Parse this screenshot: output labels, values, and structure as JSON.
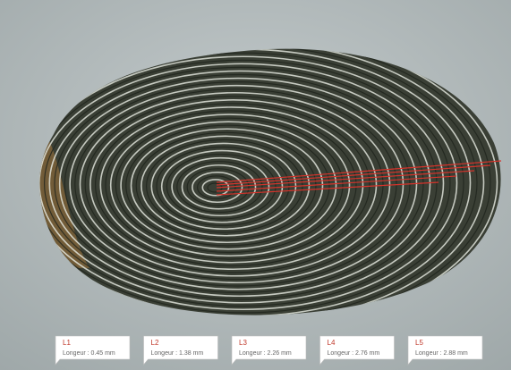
{
  "measurements": [
    {
      "name": "L1",
      "text": "Longeur : 0.45 mm"
    },
    {
      "name": "L2",
      "text": "Longeur : 1.38 mm"
    },
    {
      "name": "L3",
      "text": "Longeur : 2.26 mm"
    },
    {
      "name": "L4",
      "text": "Longeur : 2.76 mm"
    },
    {
      "name": "L5",
      "text": "Longeur : 2.88 mm"
    }
  ]
}
